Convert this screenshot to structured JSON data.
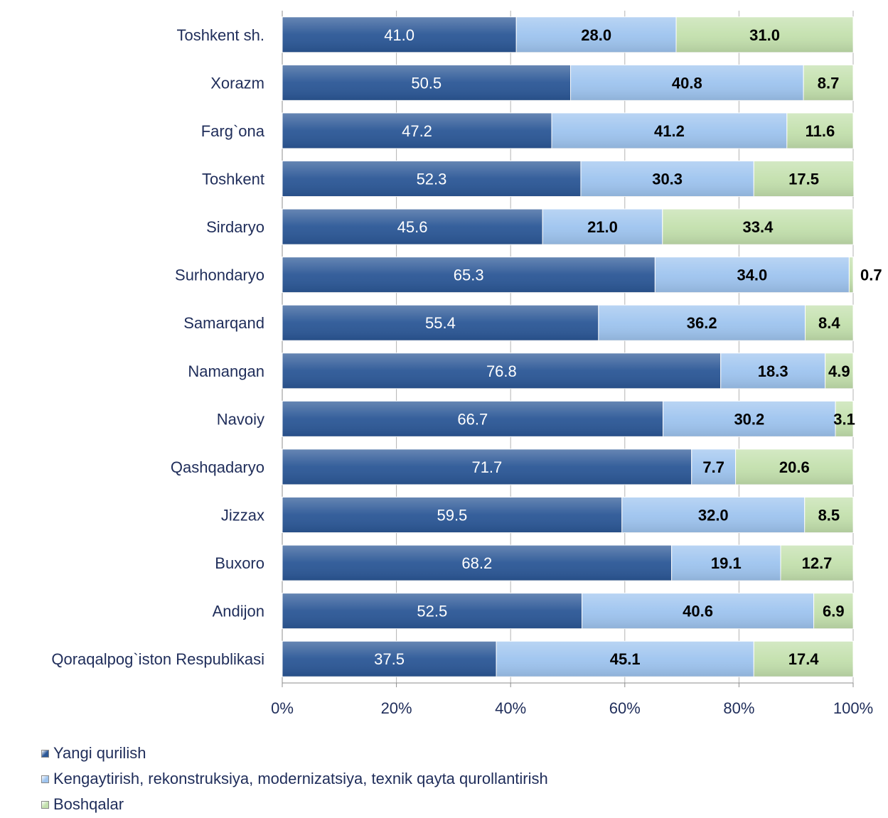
{
  "chart_data": {
    "type": "bar",
    "orientation": "horizontal",
    "stacked": "percent",
    "categories": [
      "Toshkent sh.",
      "Xorazm",
      "Farg`ona",
      "Toshkent",
      "Sirdaryo",
      "Surhondaryo",
      "Samarqand",
      "Namangan",
      "Navoiy",
      "Qashqadaryo",
      "Jizzax",
      "Buxoro",
      "Andijon",
      "Qoraqalpog`iston Respublikasi"
    ],
    "series": [
      {
        "name": "Yangi qurilish",
        "color": "#2b5796",
        "values": [
          41.0,
          50.5,
          47.2,
          52.3,
          45.6,
          65.3,
          55.4,
          76.8,
          66.7,
          71.7,
          59.5,
          68.2,
          52.5,
          37.5
        ]
      },
      {
        "name": "Kengaytirish, rekonstruksiya, modernizatsiya, texnik qayta qurollantirish",
        "color": "#9ec4ef",
        "values": [
          28.0,
          40.8,
          41.2,
          30.3,
          21.0,
          34.0,
          36.2,
          18.3,
          30.2,
          7.7,
          32.0,
          19.1,
          40.6,
          45.1
        ]
      },
      {
        "name": "Boshqalar",
        "color": "#c3e0ad",
        "values": [
          31.0,
          8.7,
          11.6,
          17.5,
          33.4,
          0.7,
          8.4,
          4.9,
          3.1,
          20.6,
          8.5,
          12.7,
          6.9,
          17.4
        ]
      }
    ],
    "xticks": [
      "0%",
      "20%",
      "40%",
      "60%",
      "80%",
      "100%"
    ],
    "xlim": [
      0,
      100
    ],
    "grid": "vertical",
    "legend_position": "bottom-left",
    "title": "",
    "xlabel": "",
    "ylabel": ""
  }
}
